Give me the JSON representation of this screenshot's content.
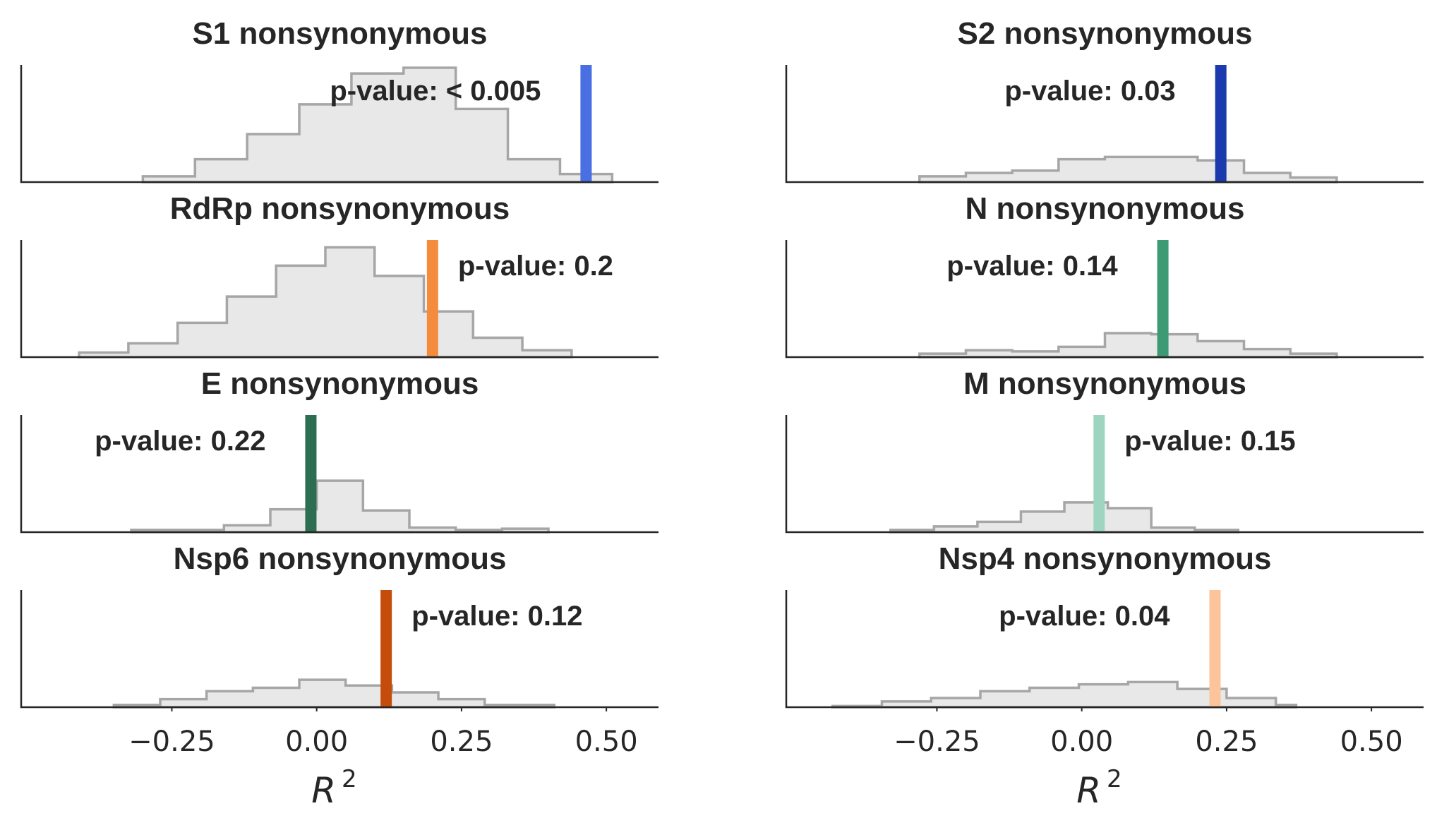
{
  "chart_data": [
    {
      "type": "histogram",
      "title": "S1 nonsynonymous",
      "annotation": "p-value: < 0.005",
      "annotation_side": "left",
      "marker": {
        "value": 0.465,
        "color": "#4a6fe3"
      },
      "bin_edges": [
        -0.3,
        -0.21,
        -0.12,
        -0.03,
        0.06,
        0.15,
        0.24,
        0.33,
        0.42,
        0.51
      ],
      "counts": [
        0.05,
        0.2,
        0.42,
        0.68,
        0.95,
        1.0,
        0.64,
        0.2,
        0.07
      ],
      "xlim": [
        -0.51,
        0.59
      ]
    },
    {
      "type": "histogram",
      "title": "S2 nonsynonymous",
      "annotation": "p-value: 0.03",
      "annotation_side": "left",
      "marker": {
        "value": 0.24,
        "color": "#1a3aad"
      },
      "bin_edges": [
        -0.28,
        -0.2,
        -0.12,
        -0.04,
        0.04,
        0.12,
        0.2,
        0.28,
        0.36,
        0.44
      ],
      "counts": [
        0.05,
        0.08,
        0.1,
        0.2,
        0.22,
        0.22,
        0.19,
        0.08,
        0.04
      ],
      "xlim": [
        -0.51,
        0.59
      ]
    },
    {
      "type": "histogram",
      "title": "RdRp nonsynonymous",
      "annotation": "p-value: 0.2",
      "annotation_side": "right",
      "marker": {
        "value": 0.2,
        "color": "#f58b3d"
      },
      "bin_edges": [
        -0.41,
        -0.325,
        -0.24,
        -0.155,
        -0.07,
        0.015,
        0.1,
        0.185,
        0.27,
        0.355,
        0.44
      ],
      "counts": [
        0.04,
        0.12,
        0.3,
        0.53,
        0.8,
        0.96,
        0.71,
        0.4,
        0.17,
        0.06
      ],
      "xlim": [
        -0.51,
        0.59
      ]
    },
    {
      "type": "histogram",
      "title": "N nonsynonymous",
      "annotation": "p-value: 0.14",
      "annotation_side": "left",
      "marker": {
        "value": 0.14,
        "color": "#3d9a74"
      },
      "bin_edges": [
        -0.28,
        -0.2,
        -0.12,
        -0.04,
        0.04,
        0.12,
        0.2,
        0.28,
        0.36,
        0.44
      ],
      "counts": [
        0.03,
        0.06,
        0.05,
        0.09,
        0.21,
        0.2,
        0.14,
        0.07,
        0.03
      ],
      "xlim": [
        -0.51,
        0.59
      ]
    },
    {
      "type": "histogram",
      "title": "E nonsynonymous",
      "annotation": "p-value: 0.22",
      "annotation_side": "left",
      "marker": {
        "value": -0.01,
        "color": "#2d6e52"
      },
      "bin_edges": [
        -0.32,
        -0.24,
        -0.16,
        -0.08,
        0.0,
        0.08,
        0.16,
        0.24,
        0.32,
        0.4
      ],
      "counts": [
        0.02,
        0.02,
        0.06,
        0.2,
        0.45,
        0.19,
        0.04,
        0.02,
        0.03
      ],
      "xlim": [
        -0.51,
        0.59
      ]
    },
    {
      "type": "histogram",
      "title": "M nonsynonymous",
      "annotation": "p-value: 0.15",
      "annotation_side": "right",
      "marker": {
        "value": 0.03,
        "color": "#9ed5c0"
      },
      "bin_edges": [
        -0.33,
        -0.255,
        -0.18,
        -0.105,
        -0.03,
        0.045,
        0.12,
        0.195,
        0.27
      ],
      "counts": [
        0.02,
        0.05,
        0.09,
        0.18,
        0.26,
        0.21,
        0.04,
        0.02
      ],
      "xlim": [
        -0.51,
        0.59
      ]
    },
    {
      "type": "histogram",
      "title": "Nsp6 nonsynonymous",
      "annotation": "p-value: 0.12",
      "annotation_side": "right",
      "marker": {
        "value": 0.12,
        "color": "#c44d0b"
      },
      "bin_edges": [
        -0.35,
        -0.27,
        -0.19,
        -0.11,
        -0.03,
        0.05,
        0.13,
        0.21,
        0.29,
        0.37,
        0.41
      ],
      "counts": [
        0.02,
        0.07,
        0.14,
        0.17,
        0.24,
        0.19,
        0.13,
        0.07,
        0.02,
        0.02
      ],
      "xlim": [
        -0.51,
        0.59
      ]
    },
    {
      "type": "histogram",
      "title": "Nsp4 nonsynonymous",
      "annotation": "p-value: 0.04",
      "annotation_side": "left",
      "marker": {
        "value": 0.23,
        "color": "#fcc49a"
      },
      "bin_edges": [
        -0.43,
        -0.345,
        -0.26,
        -0.175,
        -0.09,
        -0.005,
        0.08,
        0.165,
        0.25,
        0.335,
        0.37
      ],
      "counts": [
        0.01,
        0.05,
        0.08,
        0.14,
        0.17,
        0.2,
        0.22,
        0.16,
        0.08,
        0.02
      ],
      "xlim": [
        -0.51,
        0.59
      ]
    }
  ],
  "x_ticks": [
    -0.25,
    0.0,
    0.25,
    0.5
  ],
  "x_tick_labels": [
    "−0.25",
    "0.00",
    "0.25",
    "0.50"
  ],
  "xlabel": "R",
  "xlabel_superscript": "2"
}
